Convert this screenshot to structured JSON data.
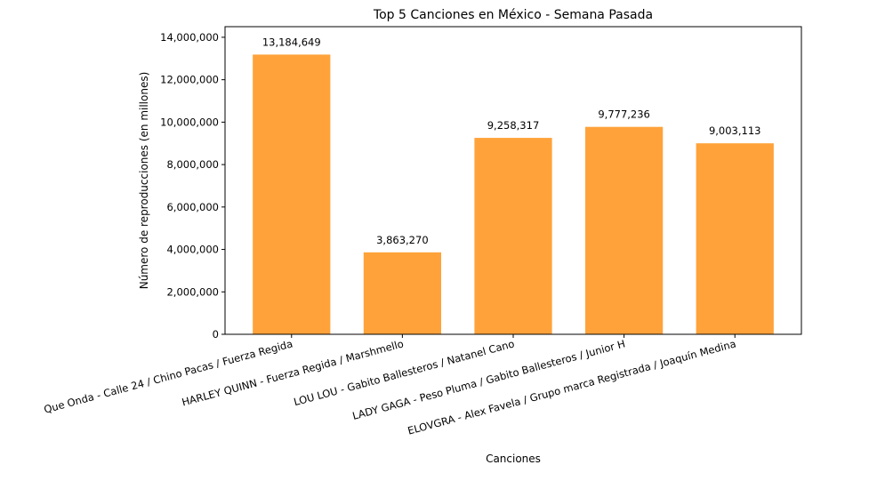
{
  "chart_data": {
    "type": "bar",
    "title": "Top 5 Canciones en México - Semana Pasada",
    "xlabel": "Canciones",
    "ylabel": "Número de reproducciones (en millones)",
    "categories": [
      "Que Onda - Calle 24 / Chino Pacas / Fuerza Regida",
      "HARLEY QUINN - Fuerza Regida / Marshmello",
      "LOU LOU - Gabito Ballesteros / Natanel Cano",
      "LADY GAGA - Peso Pluma / Gabito Ballesteros / Junior H",
      "ELOVGRA - Alex Favela / Grupo marca Registrada / Joaquín Medina"
    ],
    "values": [
      13184649,
      3863270,
      9258317,
      9777236,
      9003113
    ],
    "value_labels": [
      "13,184,649",
      "3,863,270",
      "9,258,317",
      "9,777,236",
      "9,003,113"
    ],
    "yticks": [
      0,
      2000000,
      4000000,
      6000000,
      8000000,
      10000000,
      12000000,
      14000000
    ],
    "ytick_labels": [
      "0",
      "2,000,000",
      "4,000,000",
      "6,000,000",
      "8,000,000",
      "10,000,000",
      "12,000,000",
      "14,000,000"
    ],
    "ylim": [
      0,
      14500000
    ],
    "bar_color": "#ffa23a",
    "grid": false,
    "legend": "none"
  }
}
